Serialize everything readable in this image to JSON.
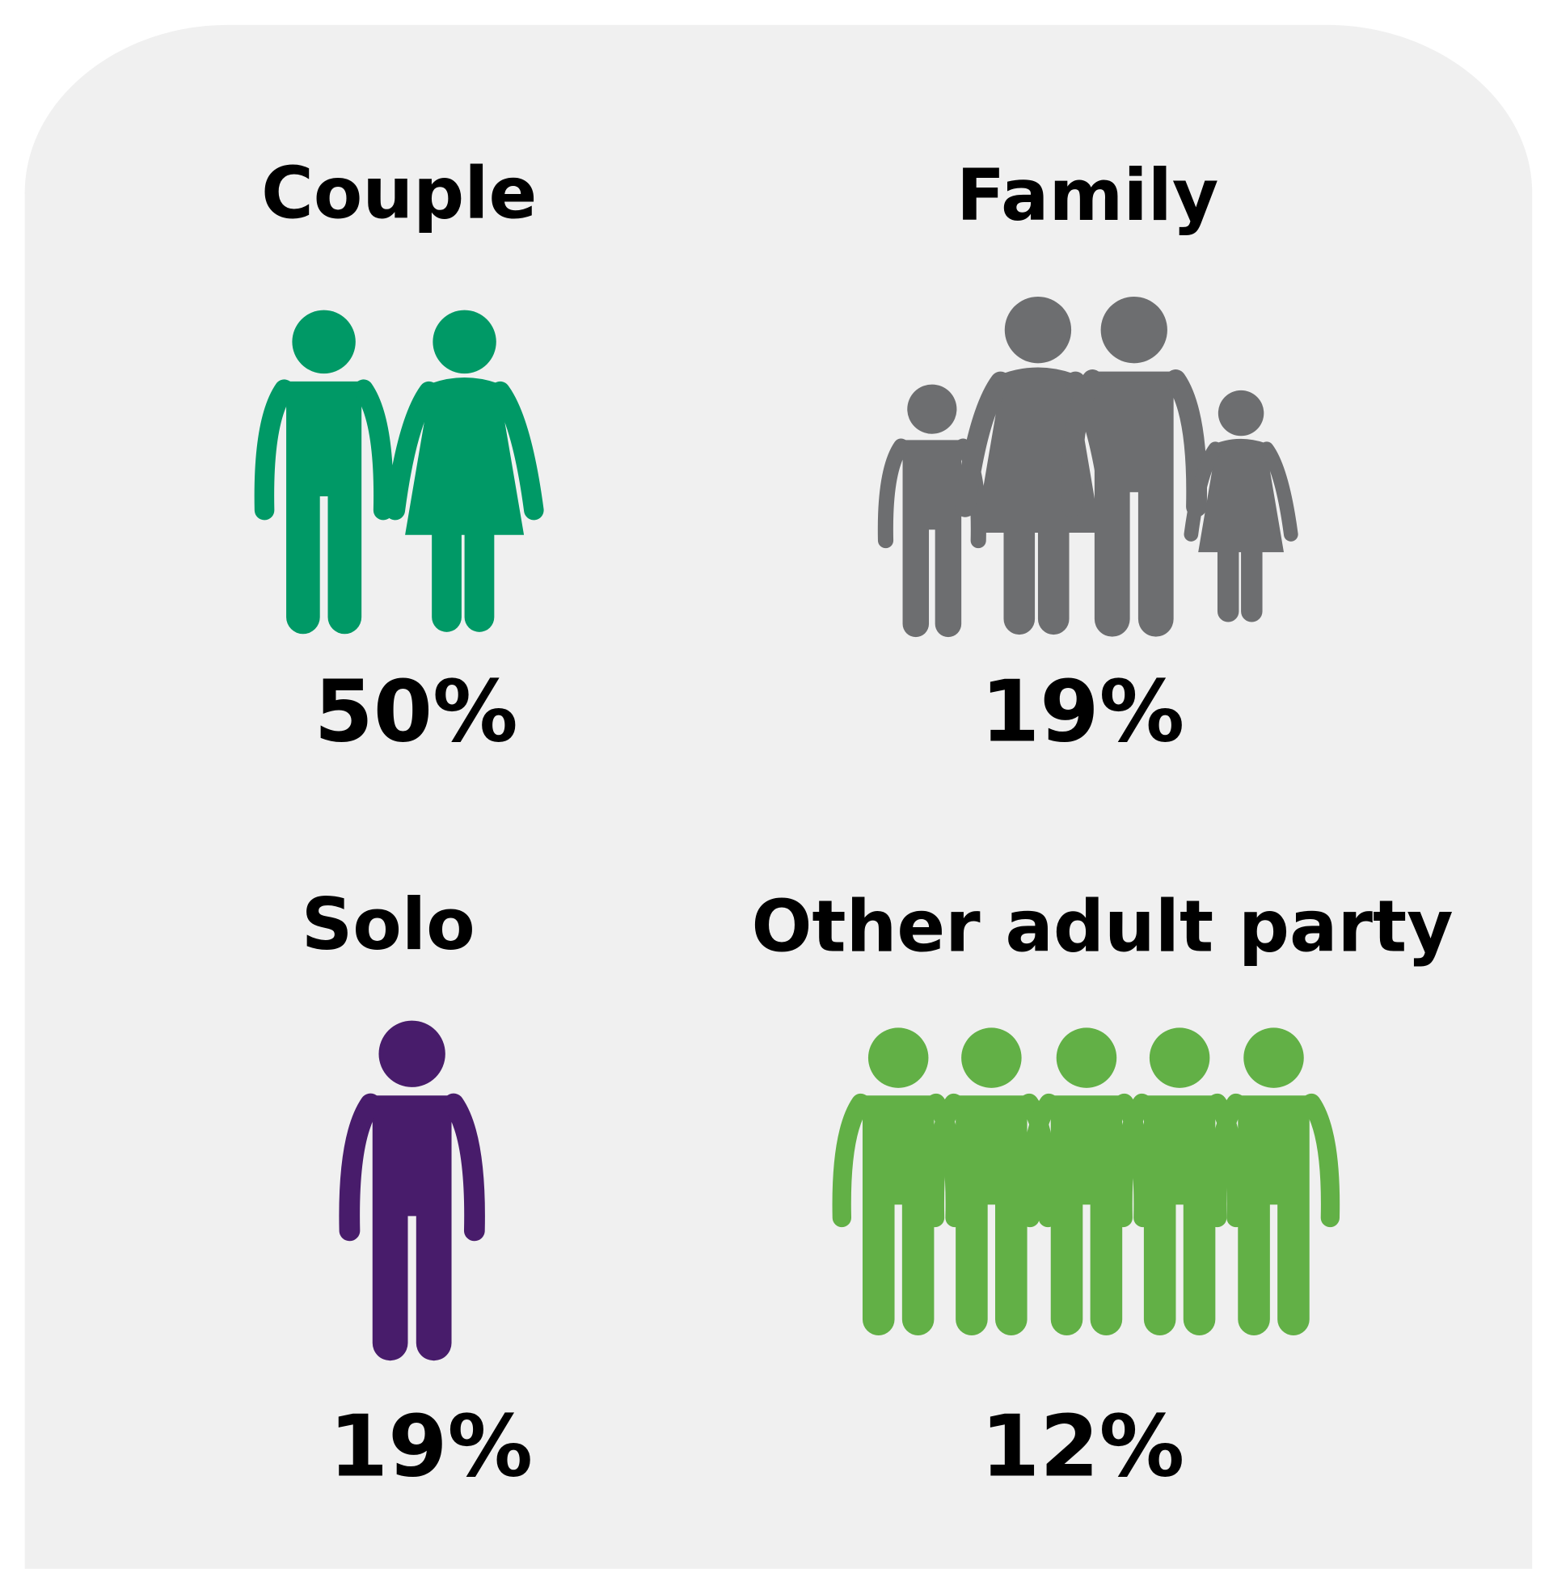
{
  "items": [
    {
      "label": "Couple",
      "value": "50%"
    },
    {
      "label": "Family",
      "value": "19%"
    },
    {
      "label": "Solo",
      "value": "19%"
    },
    {
      "label": "Other adult party",
      "value": "12%"
    }
  ]
}
